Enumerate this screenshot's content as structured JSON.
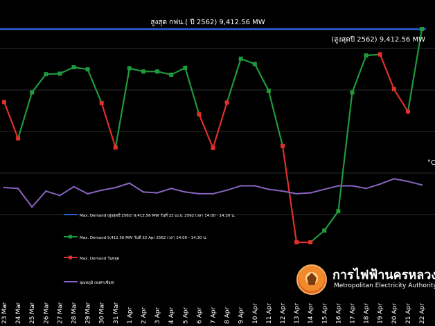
{
  "chart_data": {
    "type": "line",
    "categories": [
      "23 Mar",
      "24 Mar",
      "25 Mar",
      "26 Mar",
      "27 Mar",
      "28 Mar",
      "29 Mar",
      "30 Mar",
      "31 Mar",
      "1 Apr",
      "2 Apr",
      "3 Apr",
      "4 Apr",
      "5 Apr",
      "6 Apr",
      "7 Apr",
      "8 Apr",
      "9 Apr",
      "10 Apr",
      "11 Apr",
      "12 Apr",
      "13 Apr",
      "14 Apr",
      "15 Apr",
      "16 Apr",
      "17 Apr",
      "18 Apr",
      "19 Apr",
      "20 Apr",
      "21 Apr",
      "22 Apr"
    ],
    "series": [
      {
        "name": "Max. Demand (สูงสุดปี 2562) 9,412.56 MW วันที่ 22 เม.ย. 2562 เวลา 14.00 - 14.30 น.",
        "color": "#2f5ed8",
        "kind": "constant",
        "value": 9412.56
      },
      {
        "name": "Max. Demand 9,412.56 MW วันที่ 22 Apr 2562 เวลา 14:00 - 14:30 น.",
        "color": "#1f9a3c",
        "kind": "demand",
        "values": [
          8050,
          7370,
          8230,
          8570,
          8580,
          8700,
          8660,
          8030,
          7200,
          8680,
          8620,
          8620,
          8560,
          8690,
          7820,
          7190,
          8040,
          8860,
          8760,
          8260,
          7230,
          5430,
          5430,
          5650,
          6010,
          8230,
          8920,
          8940,
          8290,
          7870,
          9412.56
        ]
      },
      {
        "name": "Max. Demand วันหยุด",
        "color": "#e0302a",
        "kind": "holiday_marker",
        "holiday_indices": [
          0,
          1,
          7,
          8,
          14,
          15,
          16,
          20,
          21,
          22,
          27,
          28,
          29
        ]
      },
      {
        "name": "อุณหภูมิ (องศาเซียส)",
        "color": "#8a64c0",
        "kind": "temperature",
        "values": [
          28.0,
          27.9,
          25.8,
          27.6,
          27.1,
          28.1,
          27.3,
          27.7,
          28.0,
          28.5,
          27.5,
          27.4,
          27.9,
          27.5,
          27.3,
          27.3,
          27.7,
          28.2,
          28.2,
          27.8,
          27.6,
          27.3,
          27.4,
          27.8,
          28.2,
          28.2,
          27.9,
          28.4,
          29.0,
          28.7,
          28.3
        ]
      }
    ],
    "annotations": {
      "top_line_label": "สูงสุด กฟน.( ปี 2562) 9,412.56 MW",
      "peak_label": "(สูงสุดปี 2562) 9,412.56 MW",
      "right_axis_unit": "°C"
    },
    "grid": true,
    "legend_placement": "bottom-left"
  },
  "brand": {
    "name_th": "การไฟฟ้านครหลวง",
    "name_en": "Metropolitan Electricity Authority"
  }
}
